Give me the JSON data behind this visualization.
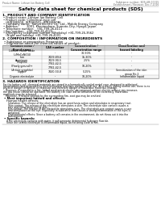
{
  "title": "Safety data sheet for chemical products (SDS)",
  "header_left": "Product Name: Lithium Ion Battery Cell",
  "header_right_1": "Substance number: SDS-LIB-00015",
  "header_right_2": "Establishment / Revision: Dec.7,2016",
  "section1_title": "1. PRODUCT AND COMPANY IDENTIFICATION",
  "section1_lines": [
    "• Product name: Lithium Ion Battery Cell",
    "• Product code: Cylindrical-type cell",
    "   (IHR18650U, IHR18650L, IHR18650A)",
    "• Company name:  Sanyo Electric Co., Ltd., Mobile Energy Company",
    "• Address:         2001, Kamimahara, Sumoto-City, Hyogo, Japan",
    "• Telephone number:   +81-799-26-4111",
    "• Fax number:   +81-799-26-4123",
    "• Emergency telephone number (Weekday) +81-799-26-3562",
    "   (Night and holiday) +81-799-26-4101"
  ],
  "section2_title": "2. COMPOSITION / INFORMATION ON INGREDIENTS",
  "section2_intro": "• Substance or preparation: Preparation",
  "section2_sub": "• Information about the chemical nature of product:",
  "table_headers": [
    "Common name /\nBrand name",
    "CAS number",
    "Concentration /\nConcentration range",
    "Classification and\nhazard labeling"
  ],
  "table_col_starts": [
    3,
    52,
    85,
    130,
    197
  ],
  "table_rows": [
    [
      "Lithium cobalt oxide\n(LiMnCoNiO4)",
      "-",
      "30-50%",
      "-"
    ],
    [
      "Iron",
      "7439-89-6",
      "15-30%",
      "-"
    ],
    [
      "Aluminum",
      "7429-90-5",
      "2-5%",
      "-"
    ],
    [
      "Graphite\n(Finely ground)+\n(Article graphite)",
      "7782-42-5\n7782-42-5",
      "10-20%",
      "-"
    ],
    [
      "Copper",
      "7440-50-8",
      "5-15%",
      "Sensitization of the skin\ngroup No.2"
    ],
    [
      "Organic electrolyte",
      "-",
      "10-20%",
      "Inflammable liquid"
    ]
  ],
  "section3_title": "3. HAZARDS IDENTIFICATION",
  "section3_text": [
    "For the battery cell, chemical materials are stored in a hermetically sealed metal case, designed to withstand",
    "temperatures and generated by electrochemical reactions during normal use. As a result, during normal use, there is no",
    "physical danger of ignition or explosion and therefore danger of hazardous materials leakage.",
    "   However, if exposed to a fire, added mechanical shocks, decomposed, written electric without any measure,",
    "the gas inside cannot be operated. The battery cell case will be breached at the extremely. Hazardous",
    "materials may be released.",
    "   Moreover, if heated strongly by the surrounding fire, soot gas may be emitted."
  ],
  "section3_bullet1": "• Most important hazard and effects:",
  "section3_human": "Human health effects:",
  "section3_human_lines": [
    "Inhalation: The release of the electrolyte has an anesthesia action and stimulates in respiratory tract.",
    "Skin contact: The release of the electrolyte stimulates a skin. The electrolyte skin contact causes a",
    "sore and stimulation on the skin.",
    "Eye contact: The release of the electrolyte stimulates eyes. The electrolyte eye contact causes a sore",
    "and stimulation on the eye. Especially, a substance that causes a strong inflammation of the eyes is",
    "contained.",
    "Environmental effects: Since a battery cell remains in the environment, do not throw out it into the",
    "environment."
  ],
  "section3_bullet2": "• Specific hazards:",
  "section3_specific": [
    "If the electrolyte contacts with water, it will generate detrimental hydrogen fluoride.",
    "Since the sealed electrolyte is inflammable liquid, do not bring close to fire."
  ],
  "bg_color": "#ffffff",
  "text_color": "#000000",
  "fs_tiny": 2.2,
  "fs_small": 2.6,
  "fs_body": 2.9,
  "fs_section": 3.2,
  "fs_title": 4.2,
  "fs_table": 2.3
}
